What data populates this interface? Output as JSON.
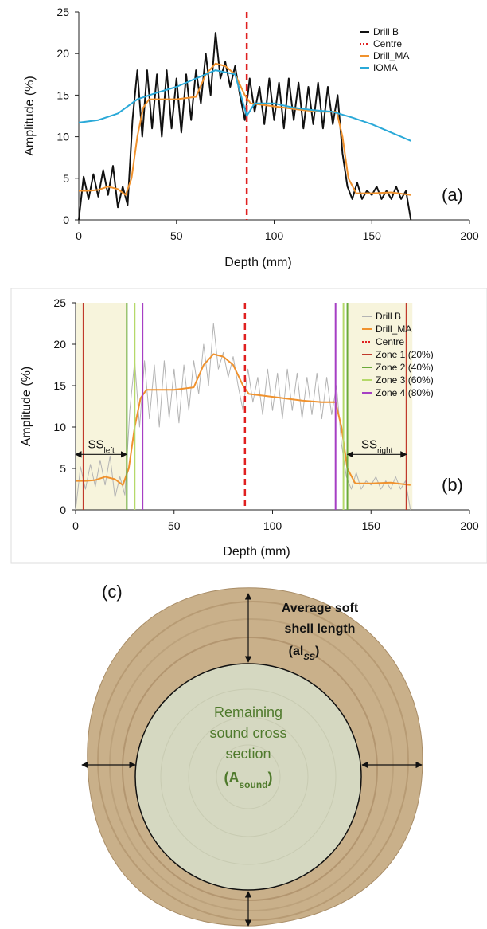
{
  "chart_data": [
    {
      "type": "line",
      "panel_label": "(a)",
      "xlabel": "Depth (mm)",
      "ylabel": "Amplitude (%)",
      "xlim": [
        0,
        200
      ],
      "xticks": [
        0,
        50,
        100,
        150,
        200
      ],
      "ylim": [
        0,
        25
      ],
      "yticks": [
        0,
        5,
        10,
        15,
        20,
        25
      ],
      "legend": "top-right",
      "series": [
        {
          "name": "Drill B",
          "kind": "line",
          "color": "#111111",
          "dash": false,
          "x": [
            0,
            2.5,
            5,
            7.5,
            10,
            12.5,
            15,
            17.5,
            20,
            22.5,
            25,
            27.5,
            30,
            32.5,
            35,
            37.5,
            40,
            42.5,
            45,
            47.5,
            50,
            52.5,
            55,
            57.5,
            60,
            62.5,
            65,
            67.5,
            70,
            72.5,
            75,
            77.5,
            80,
            82.5,
            85,
            87.5,
            90,
            92.5,
            95,
            97.5,
            100,
            102.5,
            105,
            107.5,
            110,
            112.5,
            115,
            117.5,
            120,
            122.5,
            125,
            127.5,
            130,
            132.5,
            135,
            137.5,
            140,
            142.5,
            145,
            147.5,
            150,
            152.5,
            155,
            157.5,
            160,
            162.5,
            165,
            167.5,
            170
          ],
          "values": [
            0,
            5.2,
            2.5,
            5.5,
            2.8,
            6,
            3,
            6.5,
            1.5,
            4,
            1.8,
            12,
            18,
            10,
            18,
            11,
            17.5,
            10,
            18,
            11,
            17,
            10.5,
            17.5,
            12,
            18,
            14,
            20,
            15,
            22.5,
            17,
            19,
            16,
            18.5,
            15,
            12,
            17,
            13,
            16,
            11.5,
            17,
            12,
            16.5,
            11,
            17,
            12,
            16.5,
            11,
            16,
            11.5,
            16.5,
            11,
            16,
            11.5,
            15,
            8,
            4,
            2.5,
            4.5,
            2.5,
            3.5,
            3,
            4,
            2.5,
            3.5,
            2.5,
            4,
            2.5,
            3.5,
            0
          ]
        },
        {
          "name": "Centre",
          "kind": "vline",
          "color": "#e02020",
          "dash": true,
          "x": [
            86
          ]
        },
        {
          "name": "Drill_MA",
          "kind": "line",
          "color": "#f0922e",
          "dash": false,
          "x": [
            0,
            5,
            10,
            15,
            20,
            24,
            27,
            30,
            33,
            36,
            40,
            50,
            60,
            65,
            70,
            75,
            80,
            85,
            88,
            95,
            105,
            115,
            125,
            132,
            135,
            138,
            142,
            150,
            160,
            170
          ],
          "values": [
            3.5,
            3.5,
            3.6,
            4,
            3.7,
            3,
            5,
            10,
            13.5,
            14.5,
            14.5,
            14.5,
            14.8,
            17.5,
            18.8,
            18.5,
            17.5,
            15,
            14,
            13.8,
            13.5,
            13.2,
            13,
            13,
            10,
            5,
            3.2,
            3.2,
            3.3,
            3
          ]
        },
        {
          "name": "IOMA",
          "kind": "line",
          "color": "#2aa9d8",
          "dash": false,
          "x": [
            0,
            10,
            20,
            30,
            40,
            50,
            60,
            70,
            80,
            86,
            90,
            100,
            110,
            120,
            130,
            140,
            150,
            160,
            170
          ],
          "values": [
            11.7,
            12,
            12.8,
            14.5,
            15.3,
            16,
            17,
            18,
            17.5,
            12.5,
            14,
            14,
            13.5,
            13.2,
            13,
            12.3,
            11.5,
            10.5,
            9.5
          ]
        }
      ]
    },
    {
      "type": "line",
      "panel_label": "(b)",
      "xlabel": "Depth (mm)",
      "ylabel": "Amplitude (%)",
      "xlim": [
        0,
        200
      ],
      "xticks": [
        0,
        50,
        100,
        150,
        200
      ],
      "ylim": [
        0,
        25
      ],
      "yticks": [
        0,
        5,
        10,
        15,
        20,
        25
      ],
      "legend": "top-right",
      "shaded_regions": [
        {
          "x": [
            0,
            26
          ],
          "color": "#f7f4dc"
        },
        {
          "x": [
            138,
            171
          ],
          "color": "#f7f4dc"
        }
      ],
      "annotations": [
        {
          "text": "SS",
          "sub": "left",
          "x": [
            0,
            26
          ],
          "y": 6.7
        },
        {
          "text": "SS",
          "sub": "right",
          "x": [
            138,
            168
          ],
          "y": 6.7
        }
      ],
      "series": [
        {
          "name": "Drill B",
          "kind": "line",
          "color": "#b4b4b4",
          "dash": false,
          "x": [
            0,
            2.5,
            5,
            7.5,
            10,
            12.5,
            15,
            17.5,
            20,
            22.5,
            25,
            27.5,
            30,
            32.5,
            35,
            37.5,
            40,
            42.5,
            45,
            47.5,
            50,
            52.5,
            55,
            57.5,
            60,
            62.5,
            65,
            67.5,
            70,
            72.5,
            75,
            77.5,
            80,
            82.5,
            85,
            87.5,
            90,
            92.5,
            95,
            97.5,
            100,
            102.5,
            105,
            107.5,
            110,
            112.5,
            115,
            117.5,
            120,
            122.5,
            125,
            127.5,
            130,
            132.5,
            135,
            137.5,
            140,
            142.5,
            145,
            147.5,
            150,
            152.5,
            155,
            157.5,
            160,
            162.5,
            165,
            167.5,
            170
          ],
          "values": [
            0,
            5.2,
            2.5,
            5.5,
            2.8,
            6,
            3,
            6.5,
            1.5,
            4,
            1.8,
            12,
            18,
            10,
            18,
            11,
            17.5,
            10,
            18,
            11,
            17,
            10.5,
            17.5,
            12,
            18,
            14,
            20,
            15,
            22.5,
            17,
            19,
            16,
            18.5,
            15,
            12,
            17,
            13,
            16,
            11.5,
            17,
            12,
            16.5,
            11,
            17,
            12,
            16.5,
            11,
            16,
            11.5,
            16.5,
            11,
            16,
            11.5,
            15,
            8,
            4,
            2.5,
            4.5,
            2.5,
            3.5,
            3,
            4,
            2.5,
            3.5,
            2.5,
            4,
            2.5,
            3.5,
            0
          ]
        },
        {
          "name": "Drill_MA",
          "kind": "line",
          "color": "#f0922e",
          "dash": false,
          "x": [
            0,
            5,
            10,
            15,
            20,
            24,
            27,
            30,
            33,
            36,
            40,
            50,
            60,
            65,
            70,
            75,
            80,
            85,
            88,
            95,
            105,
            115,
            125,
            132,
            135,
            138,
            142,
            150,
            160,
            170
          ],
          "values": [
            3.5,
            3.5,
            3.6,
            4,
            3.7,
            3,
            5,
            10,
            13.5,
            14.5,
            14.5,
            14.5,
            14.8,
            17.5,
            18.8,
            18.5,
            17.5,
            15,
            14,
            13.8,
            13.5,
            13.2,
            13,
            13,
            10,
            5,
            3.2,
            3.2,
            3.3,
            3
          ]
        },
        {
          "name": "Centre",
          "kind": "vline",
          "color": "#e02020",
          "dash": true,
          "x": [
            86
          ]
        },
        {
          "name": "Zone 1 (20%)",
          "kind": "vline",
          "color": "#c0392b",
          "dash": false,
          "x": [
            4,
            168
          ]
        },
        {
          "name": "Zone 2 (40%)",
          "kind": "vline",
          "color": "#6aaa3a",
          "dash": false,
          "x": [
            26,
            138
          ]
        },
        {
          "name": "Zone 3 (60%)",
          "kind": "vline",
          "color": "#b5d96a",
          "dash": false,
          "x": [
            30,
            136
          ]
        },
        {
          "name": "Zone 4 (80%)",
          "kind": "vline",
          "color": "#a63fc4",
          "dash": false,
          "x": [
            34,
            132
          ]
        }
      ]
    }
  ],
  "panel_c": {
    "label": "(c)",
    "shell_label": [
      "Average soft",
      "shell length"
    ],
    "shell_symbol": {
      "pre": "(al",
      "sub": "SS",
      "post": ")"
    },
    "sound_label": [
      "Remaining",
      "sound cross",
      "section"
    ],
    "sound_symbol": {
      "pre": "(A",
      "sub": "sound",
      "post": ")"
    }
  }
}
